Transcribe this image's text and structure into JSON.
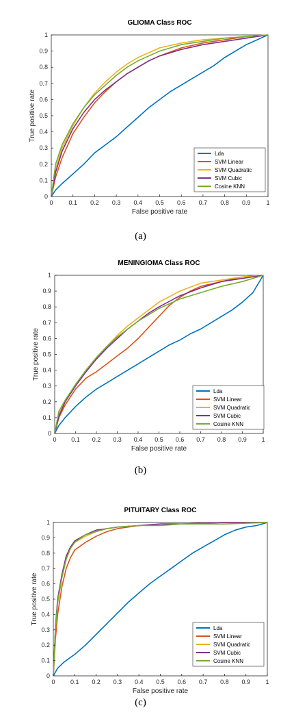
{
  "chart_data": [
    {
      "type": "line",
      "title": "GLIOMA Class ROC",
      "caption": "(a)",
      "xlabel": "False positive rate",
      "ylabel": "True positive rate",
      "xlim": [
        0,
        1
      ],
      "ylim": [
        0,
        1
      ],
      "xticks": [
        "0",
        "0.1",
        "0.2",
        "0.3",
        "0.4",
        "0.5",
        "0.6",
        "0.7",
        "0.8",
        "0.9",
        "1"
      ],
      "yticks": [
        "0",
        "0.1",
        "0.2",
        "0.3",
        "0.4",
        "0.5",
        "0.6",
        "0.7",
        "0.8",
        "0.9",
        "1"
      ],
      "grid": false,
      "legend": "bottom-right",
      "series": [
        {
          "name": "Lda",
          "color": "#0072BD",
          "x": [
            0,
            0.02,
            0.05,
            0.1,
            0.15,
            0.2,
            0.25,
            0.3,
            0.35,
            0.4,
            0.45,
            0.5,
            0.55,
            0.6,
            0.65,
            0.7,
            0.75,
            0.8,
            0.85,
            0.9,
            0.95,
            1
          ],
          "y": [
            0,
            0.04,
            0.08,
            0.14,
            0.2,
            0.27,
            0.32,
            0.37,
            0.43,
            0.49,
            0.55,
            0.6,
            0.65,
            0.69,
            0.73,
            0.77,
            0.81,
            0.86,
            0.9,
            0.94,
            0.97,
            1
          ]
        },
        {
          "name": "SVM Linear",
          "color": "#D95319",
          "x": [
            0,
            0.02,
            0.05,
            0.1,
            0.15,
            0.2,
            0.25,
            0.3,
            0.35,
            0.4,
            0.45,
            0.5,
            0.6,
            0.7,
            0.8,
            0.9,
            1
          ],
          "y": [
            0,
            0.12,
            0.24,
            0.39,
            0.49,
            0.58,
            0.65,
            0.71,
            0.76,
            0.8,
            0.84,
            0.87,
            0.92,
            0.95,
            0.97,
            0.99,
            1
          ]
        },
        {
          "name": "SVM Quadratic",
          "color": "#EDB120",
          "x": [
            0,
            0.02,
            0.05,
            0.1,
            0.15,
            0.2,
            0.25,
            0.3,
            0.35,
            0.4,
            0.45,
            0.5,
            0.6,
            0.7,
            0.8,
            0.9,
            1
          ],
          "y": [
            0,
            0.17,
            0.3,
            0.44,
            0.55,
            0.64,
            0.71,
            0.77,
            0.82,
            0.86,
            0.89,
            0.92,
            0.95,
            0.97,
            0.98,
            0.99,
            1
          ]
        },
        {
          "name": "SVM Cubic",
          "color": "#7E2F8E",
          "x": [
            0,
            0.02,
            0.05,
            0.1,
            0.15,
            0.2,
            0.25,
            0.3,
            0.35,
            0.4,
            0.45,
            0.5,
            0.6,
            0.7,
            0.8,
            0.9,
            1
          ],
          "y": [
            0,
            0.15,
            0.28,
            0.42,
            0.52,
            0.6,
            0.66,
            0.71,
            0.76,
            0.8,
            0.84,
            0.87,
            0.91,
            0.94,
            0.96,
            0.98,
            1
          ]
        },
        {
          "name": "Cosine KNN",
          "color": "#77AC30",
          "x": [
            0,
            0.02,
            0.05,
            0.1,
            0.15,
            0.2,
            0.25,
            0.3,
            0.35,
            0.4,
            0.45,
            0.5,
            0.6,
            0.7,
            0.8,
            0.9,
            1
          ],
          "y": [
            0,
            0.2,
            0.32,
            0.45,
            0.55,
            0.63,
            0.69,
            0.75,
            0.8,
            0.84,
            0.87,
            0.9,
            0.94,
            0.96,
            0.98,
            0.99,
            1
          ]
        }
      ]
    },
    {
      "type": "line",
      "title": "MENINGIOMA Class ROC",
      "caption": "(b)",
      "xlabel": "False positive rate",
      "ylabel": "True positive rate",
      "xlim": [
        0,
        1
      ],
      "ylim": [
        0,
        1
      ],
      "xticks": [
        "0",
        "0.1",
        "0.2",
        "0.3",
        "0.4",
        "0.5",
        "0.6",
        "0.7",
        "0.8",
        "0.9",
        "1"
      ],
      "yticks": [
        "0",
        "0.1",
        "0.2",
        "0.3",
        "0.4",
        "0.5",
        "0.6",
        "0.7",
        "0.8",
        "0.9",
        "1"
      ],
      "grid": false,
      "legend": "bottom-right",
      "series": [
        {
          "name": "Lda",
          "color": "#0072BD",
          "x": [
            0,
            0.02,
            0.05,
            0.1,
            0.15,
            0.2,
            0.25,
            0.3,
            0.35,
            0.4,
            0.45,
            0.5,
            0.55,
            0.6,
            0.65,
            0.7,
            0.75,
            0.8,
            0.85,
            0.9,
            0.95,
            1
          ],
          "y": [
            0,
            0.05,
            0.1,
            0.17,
            0.23,
            0.28,
            0.32,
            0.36,
            0.4,
            0.44,
            0.48,
            0.52,
            0.56,
            0.59,
            0.63,
            0.66,
            0.7,
            0.74,
            0.78,
            0.83,
            0.89,
            1
          ]
        },
        {
          "name": "SVM Linear",
          "color": "#D95319",
          "x": [
            0,
            0.02,
            0.05,
            0.1,
            0.15,
            0.2,
            0.25,
            0.3,
            0.35,
            0.4,
            0.45,
            0.5,
            0.55,
            0.6,
            0.65,
            0.7,
            0.8,
            0.9,
            1
          ],
          "y": [
            0,
            0.1,
            0.18,
            0.28,
            0.35,
            0.39,
            0.44,
            0.49,
            0.54,
            0.6,
            0.67,
            0.74,
            0.81,
            0.86,
            0.9,
            0.93,
            0.96,
            0.99,
            1
          ]
        },
        {
          "name": "SVM Quadratic",
          "color": "#EDB120",
          "x": [
            0,
            0.02,
            0.05,
            0.1,
            0.15,
            0.2,
            0.25,
            0.3,
            0.35,
            0.4,
            0.45,
            0.5,
            0.6,
            0.7,
            0.8,
            0.9,
            1
          ],
          "y": [
            0,
            0.12,
            0.2,
            0.31,
            0.4,
            0.48,
            0.55,
            0.62,
            0.68,
            0.73,
            0.78,
            0.83,
            0.9,
            0.95,
            0.97,
            0.99,
            1
          ]
        },
        {
          "name": "SVM Cubic",
          "color": "#7E2F8E",
          "x": [
            0,
            0.02,
            0.05,
            0.1,
            0.15,
            0.2,
            0.25,
            0.3,
            0.35,
            0.4,
            0.45,
            0.5,
            0.6,
            0.7,
            0.8,
            0.9,
            1
          ],
          "y": [
            0,
            0.11,
            0.2,
            0.3,
            0.39,
            0.47,
            0.54,
            0.6,
            0.66,
            0.71,
            0.76,
            0.8,
            0.87,
            0.92,
            0.96,
            0.98,
            1
          ]
        },
        {
          "name": "Cosine KNN",
          "color": "#77AC30",
          "x": [
            0,
            0.02,
            0.05,
            0.1,
            0.15,
            0.2,
            0.25,
            0.3,
            0.35,
            0.4,
            0.45,
            0.5,
            0.6,
            0.7,
            0.8,
            0.9,
            1
          ],
          "y": [
            0,
            0.14,
            0.21,
            0.31,
            0.4,
            0.48,
            0.55,
            0.61,
            0.66,
            0.71,
            0.75,
            0.79,
            0.85,
            0.89,
            0.93,
            0.96,
            1
          ]
        }
      ]
    },
    {
      "type": "line",
      "title": "PITUITARY Class ROC",
      "caption": "(c)",
      "xlabel": "False positive rate",
      "ylabel": "True positive rate",
      "xlim": [
        0,
        1
      ],
      "ylim": [
        0,
        1
      ],
      "xticks": [
        "0",
        "0.1",
        "0.2",
        "0.3",
        "0.4",
        "0.5",
        "0.6",
        "0.7",
        "0.8",
        "0.9",
        "1"
      ],
      "yticks": [
        "0",
        "0.1",
        "0.2",
        "0.3",
        "0.4",
        "0.5",
        "0.6",
        "0.7",
        "0.8",
        "0.9",
        "1"
      ],
      "grid": false,
      "legend": "bottom-right",
      "series": [
        {
          "name": "Lda",
          "color": "#0072BD",
          "x": [
            0,
            0.02,
            0.05,
            0.1,
            0.15,
            0.2,
            0.25,
            0.3,
            0.35,
            0.4,
            0.45,
            0.5,
            0.55,
            0.6,
            0.65,
            0.7,
            0.75,
            0.8,
            0.85,
            0.9,
            0.95,
            1
          ],
          "y": [
            0,
            0.05,
            0.09,
            0.14,
            0.2,
            0.27,
            0.34,
            0.41,
            0.48,
            0.54,
            0.6,
            0.65,
            0.7,
            0.75,
            0.8,
            0.84,
            0.88,
            0.92,
            0.95,
            0.97,
            0.98,
            1
          ]
        },
        {
          "name": "SVM Linear",
          "color": "#D95319",
          "x": [
            0,
            0.01,
            0.02,
            0.04,
            0.06,
            0.08,
            0.1,
            0.15,
            0.2,
            0.25,
            0.3,
            0.4,
            0.5,
            0.6,
            0.8,
            1
          ],
          "y": [
            0,
            0.24,
            0.4,
            0.58,
            0.7,
            0.77,
            0.82,
            0.87,
            0.91,
            0.94,
            0.96,
            0.98,
            0.99,
            0.99,
            1,
            1
          ]
        },
        {
          "name": "SVM Quadratic",
          "color": "#EDB120",
          "x": [
            0,
            0.01,
            0.02,
            0.04,
            0.06,
            0.08,
            0.1,
            0.15,
            0.2,
            0.25,
            0.3,
            0.4,
            0.5,
            0.6,
            0.8,
            1
          ],
          "y": [
            0,
            0.3,
            0.47,
            0.64,
            0.76,
            0.83,
            0.87,
            0.91,
            0.94,
            0.96,
            0.97,
            0.98,
            0.99,
            0.99,
            1,
            1
          ]
        },
        {
          "name": "SVM Cubic",
          "color": "#7E2F8E",
          "x": [
            0,
            0.01,
            0.02,
            0.04,
            0.06,
            0.08,
            0.1,
            0.15,
            0.2,
            0.25,
            0.3,
            0.4,
            0.5,
            0.6,
            0.8,
            1
          ],
          "y": [
            0,
            0.32,
            0.5,
            0.66,
            0.78,
            0.84,
            0.88,
            0.92,
            0.95,
            0.96,
            0.97,
            0.98,
            0.99,
            0.99,
            1,
            1
          ]
        },
        {
          "name": "Cosine KNN",
          "color": "#77AC30",
          "x": [
            0,
            0.01,
            0.02,
            0.04,
            0.06,
            0.08,
            0.1,
            0.15,
            0.2,
            0.25,
            0.3,
            0.4,
            0.5,
            0.6,
            0.8,
            1
          ],
          "y": [
            0,
            0.3,
            0.48,
            0.64,
            0.76,
            0.83,
            0.87,
            0.92,
            0.94,
            0.96,
            0.97,
            0.98,
            0.98,
            0.99,
            0.99,
            1
          ]
        }
      ]
    }
  ]
}
